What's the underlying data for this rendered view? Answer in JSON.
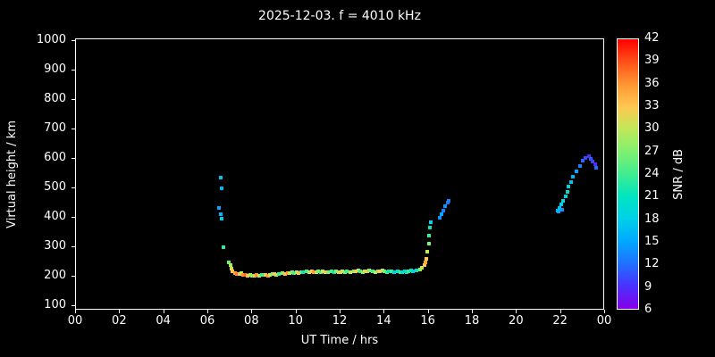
{
  "title": "2025-12-03. f = 4010 kHz",
  "chart_data": {
    "type": "scatter",
    "title": "2025-12-03. f = 4010 kHz",
    "xlabel": "UT Time / hrs",
    "ylabel": "Virtual height / km",
    "xlim": [
      0,
      24
    ],
    "ylim": [
      85,
      1005
    ],
    "grid": false,
    "background": "#000000",
    "frame_color": "#ffffff",
    "text_color": "#ffffff",
    "xticks": {
      "values": [
        0,
        2,
        4,
        6,
        8,
        10,
        12,
        14,
        16,
        18,
        20,
        22,
        24
      ],
      "labels": [
        "00",
        "02",
        "04",
        "06",
        "08",
        "10",
        "12",
        "14",
        "16",
        "18",
        "20",
        "22",
        "00"
      ]
    },
    "yticks": {
      "values": [
        100,
        200,
        300,
        400,
        500,
        600,
        700,
        800,
        900,
        1000
      ],
      "labels": [
        "100",
        "200",
        "300",
        "400",
        "500",
        "600",
        "700",
        "800",
        "900",
        "1000"
      ]
    },
    "colorbar": {
      "label": "SNR / dB",
      "min": 6,
      "max": 42,
      "ticks": [
        6,
        9,
        12,
        15,
        18,
        21,
        24,
        27,
        30,
        33,
        36,
        39,
        42
      ],
      "stops": [
        "#8800e8",
        "#4a30ff",
        "#2070ff",
        "#00a8ff",
        "#00d0e8",
        "#00e4c0",
        "#40ec90",
        "#80f070",
        "#c0e858",
        "#ffc850",
        "#ff9632",
        "#ff5018",
        "#ff0000"
      ]
    },
    "point_format": [
      "ut_hours",
      "virtual_height_km",
      "snr_db"
    ],
    "points": [
      [
        6.55,
        535,
        17
      ],
      [
        6.6,
        500,
        16
      ],
      [
        6.5,
        432,
        15
      ],
      [
        6.57,
        412,
        16
      ],
      [
        6.62,
        396,
        18
      ],
      [
        6.68,
        300,
        23
      ],
      [
        6.95,
        248,
        26
      ],
      [
        7.0,
        238,
        29
      ],
      [
        7.05,
        228,
        31
      ],
      [
        7.1,
        218,
        33
      ],
      [
        7.2,
        212,
        35
      ],
      [
        7.3,
        210,
        37
      ],
      [
        7.4,
        208,
        33
      ],
      [
        7.5,
        212,
        30
      ],
      [
        7.6,
        207,
        36
      ],
      [
        7.7,
        205,
        38
      ],
      [
        7.8,
        203,
        33
      ],
      [
        7.9,
        207,
        30
      ],
      [
        8.0,
        204,
        27
      ],
      [
        8.1,
        202,
        33
      ],
      [
        8.2,
        206,
        36
      ],
      [
        8.3,
        203,
        30
      ],
      [
        8.45,
        205,
        24
      ],
      [
        8.6,
        207,
        33
      ],
      [
        8.7,
        204,
        36
      ],
      [
        8.8,
        206,
        30
      ],
      [
        8.9,
        210,
        27
      ],
      [
        9.0,
        208,
        33
      ],
      [
        9.1,
        205,
        30
      ],
      [
        9.2,
        210,
        24
      ],
      [
        9.35,
        212,
        27
      ],
      [
        9.5,
        210,
        33
      ],
      [
        9.6,
        213,
        36
      ],
      [
        9.7,
        211,
        30
      ],
      [
        9.8,
        214,
        27
      ],
      [
        9.9,
        212,
        24
      ],
      [
        10.0,
        215,
        30
      ],
      [
        10.1,
        213,
        33
      ],
      [
        10.2,
        216,
        27
      ],
      [
        10.3,
        214,
        21
      ],
      [
        10.45,
        217,
        24
      ],
      [
        10.6,
        215,
        30
      ],
      [
        10.7,
        218,
        33
      ],
      [
        10.8,
        216,
        36
      ],
      [
        10.9,
        214,
        30
      ],
      [
        11.0,
        217,
        27
      ],
      [
        11.1,
        215,
        24
      ],
      [
        11.2,
        218,
        30
      ],
      [
        11.3,
        216,
        33
      ],
      [
        11.45,
        214,
        27
      ],
      [
        11.6,
        217,
        24
      ],
      [
        11.7,
        215,
        21
      ],
      [
        11.8,
        218,
        27
      ],
      [
        11.9,
        216,
        30
      ],
      [
        12.0,
        214,
        33
      ],
      [
        12.1,
        217,
        30
      ],
      [
        12.2,
        215,
        27
      ],
      [
        12.3,
        218,
        24
      ],
      [
        12.45,
        216,
        30
      ],
      [
        12.6,
        219,
        27
      ],
      [
        12.7,
        217,
        33
      ],
      [
        12.8,
        220,
        30
      ],
      [
        12.9,
        218,
        24
      ],
      [
        13.0,
        216,
        27
      ],
      [
        13.1,
        219,
        30
      ],
      [
        13.2,
        217,
        33
      ],
      [
        13.3,
        220,
        27
      ],
      [
        13.45,
        218,
        24
      ],
      [
        13.6,
        216,
        30
      ],
      [
        13.7,
        219,
        27
      ],
      [
        13.8,
        217,
        33
      ],
      [
        13.9,
        220,
        30
      ],
      [
        14.0,
        218,
        27
      ],
      [
        14.1,
        216,
        24
      ],
      [
        14.2,
        219,
        21
      ],
      [
        14.3,
        217,
        24
      ],
      [
        14.45,
        215,
        18
      ],
      [
        14.6,
        218,
        21
      ],
      [
        14.7,
        216,
        24
      ],
      [
        14.8,
        214,
        21
      ],
      [
        14.9,
        217,
        18
      ],
      [
        15.0,
        215,
        21
      ],
      [
        15.1,
        218,
        24
      ],
      [
        15.2,
        220,
        21
      ],
      [
        15.3,
        218,
        18
      ],
      [
        15.45,
        222,
        21
      ],
      [
        15.6,
        225,
        27
      ],
      [
        15.7,
        230,
        30
      ],
      [
        15.8,
        238,
        33
      ],
      [
        15.85,
        248,
        35
      ],
      [
        15.9,
        262,
        33
      ],
      [
        15.95,
        285,
        30
      ],
      [
        16.0,
        312,
        27
      ],
      [
        16.02,
        340,
        24
      ],
      [
        16.05,
        365,
        21
      ],
      [
        16.1,
        386,
        18
      ],
      [
        16.5,
        400,
        14
      ],
      [
        16.6,
        413,
        15
      ],
      [
        16.65,
        425,
        13
      ],
      [
        16.75,
        438,
        14
      ],
      [
        16.85,
        450,
        12
      ],
      [
        16.92,
        458,
        13
      ],
      [
        21.85,
        425,
        16
      ],
      [
        21.9,
        420,
        15
      ],
      [
        21.95,
        432,
        17
      ],
      [
        22.0,
        445,
        18
      ],
      [
        22.05,
        428,
        14
      ],
      [
        22.1,
        458,
        19
      ],
      [
        22.2,
        472,
        18
      ],
      [
        22.3,
        488,
        20
      ],
      [
        22.35,
        505,
        19
      ],
      [
        22.45,
        520,
        17
      ],
      [
        22.55,
        540,
        16
      ],
      [
        22.7,
        558,
        15
      ],
      [
        22.85,
        575,
        13
      ],
      [
        23.0,
        592,
        12
      ],
      [
        23.1,
        603,
        10
      ],
      [
        23.25,
        608,
        9
      ],
      [
        23.35,
        600,
        11
      ],
      [
        23.45,
        590,
        10
      ],
      [
        23.55,
        580,
        9
      ],
      [
        23.6,
        570,
        12
      ]
    ]
  }
}
